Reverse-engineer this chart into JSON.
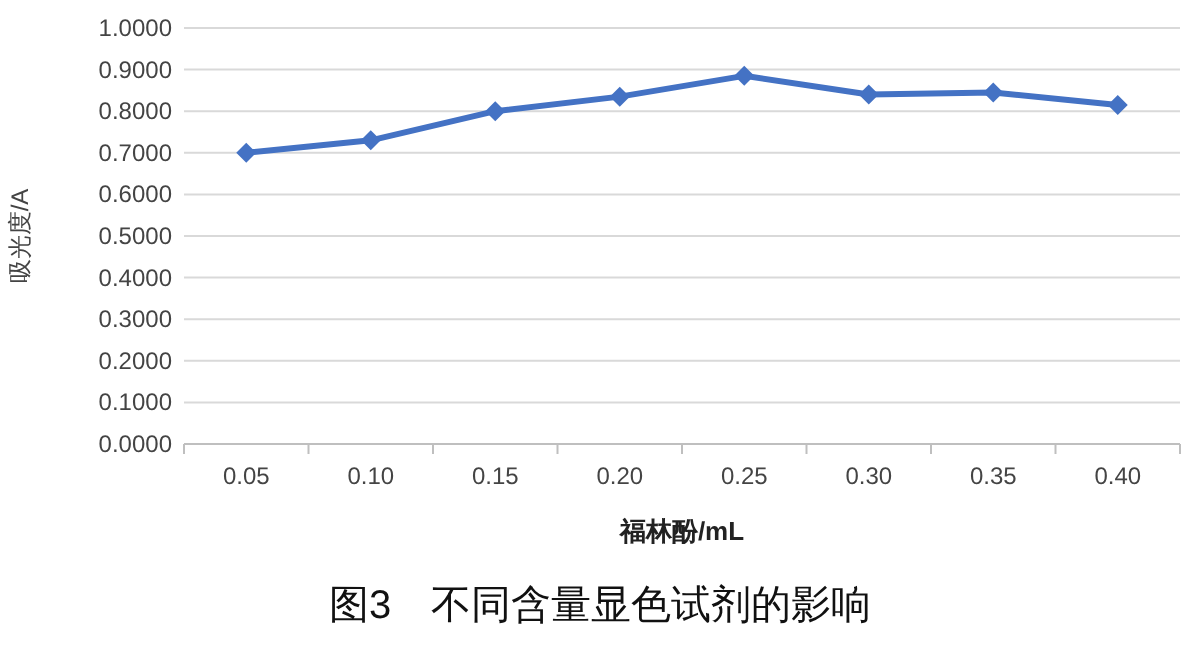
{
  "chart_data": {
    "type": "line",
    "title": "图3　不同含量显色试剂的影响",
    "xlabel": "福林酚/mL",
    "ylabel": "吸光度/A",
    "categories": [
      "0.05",
      "0.10",
      "0.15",
      "0.20",
      "0.25",
      "0.30",
      "0.35",
      "0.40"
    ],
    "series": [
      {
        "color": "#4472c4",
        "values": [
          0.7,
          0.73,
          0.8,
          0.835,
          0.885,
          0.84,
          0.845,
          0.815
        ]
      }
    ],
    "ylim": [
      0,
      1
    ],
    "yticks": [
      {
        "value": 0,
        "label": "0.0000"
      },
      {
        "value": 0.1,
        "label": "0.1000"
      },
      {
        "value": 0.2,
        "label": "0.2000"
      },
      {
        "value": 0.3,
        "label": "0.3000"
      },
      {
        "value": 0.4,
        "label": "0.4000"
      },
      {
        "value": 0.5,
        "label": "0.5000"
      },
      {
        "value": 0.6,
        "label": "0.6000"
      },
      {
        "value": 0.7,
        "label": "0.7000"
      },
      {
        "value": 0.8,
        "label": "0.8000"
      },
      {
        "value": 0.9,
        "label": "0.9000"
      },
      {
        "value": 1,
        "label": "1.0000"
      }
    ],
    "grid": "y",
    "marker": "diamond",
    "line_style": "solid"
  }
}
